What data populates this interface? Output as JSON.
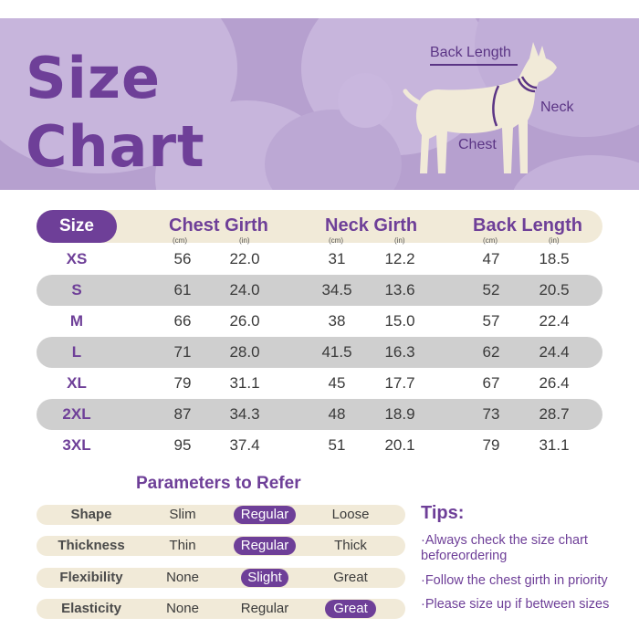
{
  "header": {
    "title_line1": "Size",
    "title_line2": "Chart",
    "dog_labels": {
      "back_length": "Back Length",
      "neck": "Neck",
      "chest": "Chest"
    }
  },
  "table": {
    "size_header": "Size",
    "columns": [
      {
        "title": "Chest Girth",
        "unit_cm": "(cm)",
        "unit_in": "(in)"
      },
      {
        "title": "Neck Girth",
        "unit_cm": "(cm)",
        "unit_in": "(in)"
      },
      {
        "title": "Back Length",
        "unit_cm": "(cm)",
        "unit_in": "(in)"
      }
    ],
    "rows": [
      {
        "size": "XS",
        "chest_cm": "56",
        "chest_in": "22.0",
        "neck_cm": "31",
        "neck_in": "12.2",
        "back_cm": "47",
        "back_in": "18.5"
      },
      {
        "size": "S",
        "chest_cm": "61",
        "chest_in": "24.0",
        "neck_cm": "34.5",
        "neck_in": "13.6",
        "back_cm": "52",
        "back_in": "20.5"
      },
      {
        "size": "M",
        "chest_cm": "66",
        "chest_in": "26.0",
        "neck_cm": "38",
        "neck_in": "15.0",
        "back_cm": "57",
        "back_in": "22.4"
      },
      {
        "size": "L",
        "chest_cm": "71",
        "chest_in": "28.0",
        "neck_cm": "41.5",
        "neck_in": "16.3",
        "back_cm": "62",
        "back_in": "24.4"
      },
      {
        "size": "XL",
        "chest_cm": "79",
        "chest_in": "31.1",
        "neck_cm": "45",
        "neck_in": "17.7",
        "back_cm": "67",
        "back_in": "26.4"
      },
      {
        "size": "2XL",
        "chest_cm": "87",
        "chest_in": "34.3",
        "neck_cm": "48",
        "neck_in": "18.9",
        "back_cm": "73",
        "back_in": "28.7"
      },
      {
        "size": "3XL",
        "chest_cm": "95",
        "chest_in": "37.4",
        "neck_cm": "51",
        "neck_in": "20.1",
        "back_cm": "79",
        "back_in": "31.1"
      }
    ]
  },
  "parameters": {
    "title": "Parameters to Refer",
    "rows": [
      {
        "label": "Shape",
        "options": [
          "Slim",
          "Regular",
          "Loose"
        ],
        "selected": 1
      },
      {
        "label": "Thickness",
        "options": [
          "Thin",
          "Regular",
          "Thick"
        ],
        "selected": 1
      },
      {
        "label": "Flexibility",
        "options": [
          "None",
          "Slight",
          "Great"
        ],
        "selected": 1
      },
      {
        "label": "Elasticity",
        "options": [
          "None",
          "Regular",
          "Great"
        ],
        "selected": 2
      }
    ]
  },
  "tips": {
    "title": "Tips:",
    "items": [
      "·Always check the size chart beforeordering",
      "·Follow the chest girth in priority",
      "·Please size up if between sizes"
    ]
  },
  "colors": {
    "accent": "#6e3f98",
    "banner": "#b6a0cf",
    "cream": "#f1ead8",
    "stripe": "#cfcfcf",
    "dog": "#f1ead8"
  }
}
